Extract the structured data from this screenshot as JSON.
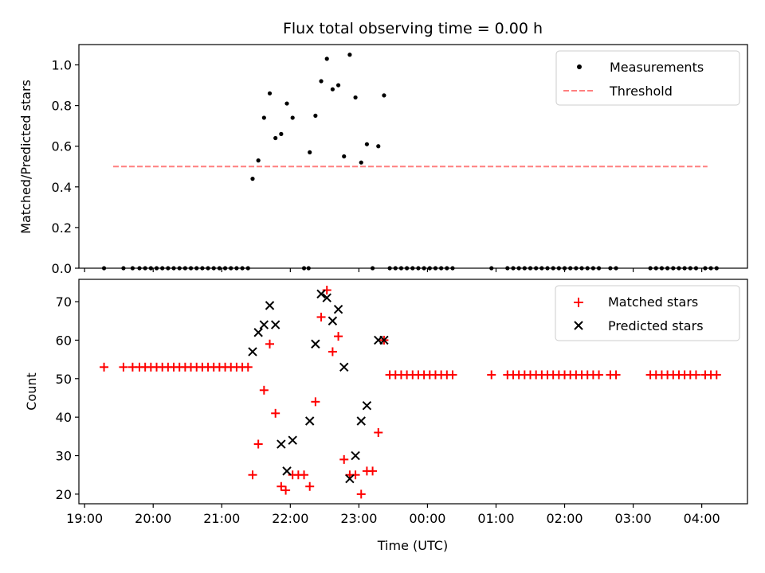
{
  "title": "Flux total observing time = 0.00 h",
  "colors": {
    "measurements": "#000000",
    "threshold": "#ff7f7f",
    "matched": "#ff0000",
    "predicted": "#000000"
  },
  "chart_data": [
    {
      "type": "scatter",
      "ylabel": "Matched/Predicted stars",
      "ylim": [
        0,
        1.1
      ],
      "yticks": [
        0.0,
        0.2,
        0.4,
        0.6,
        0.8,
        1.0
      ],
      "ytick_labels": [
        "0.0",
        "0.2",
        "0.4",
        "0.6",
        "0.8",
        "1.0"
      ],
      "xlim": [
        "18:55",
        "04:40"
      ],
      "grid": false,
      "legend": {
        "placement": "top-right",
        "entries": [
          "Measurements",
          "Threshold"
        ]
      },
      "threshold": {
        "name": "Threshold",
        "value": 0.5,
        "x_start": "19:25",
        "x_end": "04:05"
      },
      "series": [
        {
          "name": "Measurements",
          "points": [
            [
              "19:17",
              0
            ],
            [
              "19:34",
              0
            ],
            [
              "19:42",
              0
            ],
            [
              "19:48",
              0
            ],
            [
              "19:53",
              0
            ],
            [
              "19:58",
              0
            ],
            [
              "20:03",
              0
            ],
            [
              "20:08",
              0
            ],
            [
              "20:13",
              0
            ],
            [
              "20:18",
              0
            ],
            [
              "20:23",
              0
            ],
            [
              "20:28",
              0
            ],
            [
              "20:33",
              0
            ],
            [
              "20:38",
              0
            ],
            [
              "20:43",
              0
            ],
            [
              "20:48",
              0
            ],
            [
              "20:53",
              0
            ],
            [
              "20:58",
              0
            ],
            [
              "21:03",
              0
            ],
            [
              "21:08",
              0
            ],
            [
              "21:13",
              0
            ],
            [
              "21:18",
              0
            ],
            [
              "21:23",
              0
            ],
            [
              "21:27",
              0.44
            ],
            [
              "21:32",
              0.53
            ],
            [
              "21:37",
              0.74
            ],
            [
              "21:42",
              0.86
            ],
            [
              "21:47",
              0.64
            ],
            [
              "21:52",
              0.66
            ],
            [
              "21:57",
              0.81
            ],
            [
              "22:02",
              0.74
            ],
            [
              "22:12",
              0.0
            ],
            [
              "22:16",
              0.0
            ],
            [
              "22:17",
              0.57
            ],
            [
              "22:22",
              0.75
            ],
            [
              "22:27",
              0.92
            ],
            [
              "22:32",
              1.03
            ],
            [
              "22:37",
              0.88
            ],
            [
              "22:42",
              0.9
            ],
            [
              "22:47",
              0.55
            ],
            [
              "22:52",
              1.05
            ],
            [
              "22:57",
              0.84
            ],
            [
              "23:02",
              0.52
            ],
            [
              "23:07",
              0.61
            ],
            [
              "23:12",
              0.0
            ],
            [
              "23:17",
              0.6
            ],
            [
              "23:22",
              0.85
            ],
            [
              "23:27",
              0
            ],
            [
              "23:32",
              0
            ],
            [
              "23:37",
              0
            ],
            [
              "23:42",
              0
            ],
            [
              "23:47",
              0
            ],
            [
              "23:52",
              0
            ],
            [
              "23:57",
              0
            ],
            [
              "00:02",
              0
            ],
            [
              "00:07",
              0
            ],
            [
              "00:12",
              0
            ],
            [
              "00:17",
              0
            ],
            [
              "00:22",
              0
            ],
            [
              "00:56",
              0
            ],
            [
              "01:10",
              0
            ],
            [
              "01:15",
              0
            ],
            [
              "01:20",
              0
            ],
            [
              "01:25",
              0
            ],
            [
              "01:30",
              0
            ],
            [
              "01:35",
              0
            ],
            [
              "01:40",
              0
            ],
            [
              "01:45",
              0
            ],
            [
              "01:50",
              0
            ],
            [
              "01:55",
              0
            ],
            [
              "02:00",
              0
            ],
            [
              "02:05",
              0
            ],
            [
              "02:10",
              0
            ],
            [
              "02:15",
              0
            ],
            [
              "02:20",
              0
            ],
            [
              "02:25",
              0
            ],
            [
              "02:30",
              0
            ],
            [
              "02:40",
              0
            ],
            [
              "02:45",
              0
            ],
            [
              "03:15",
              0
            ],
            [
              "03:20",
              0
            ],
            [
              "03:25",
              0
            ],
            [
              "03:30",
              0
            ],
            [
              "03:35",
              0
            ],
            [
              "03:40",
              0
            ],
            [
              "03:45",
              0
            ],
            [
              "03:50",
              0
            ],
            [
              "03:55",
              0
            ],
            [
              "04:03",
              0
            ],
            [
              "04:08",
              0
            ],
            [
              "04:13",
              0
            ]
          ]
        }
      ]
    },
    {
      "type": "scatter",
      "xlabel": "Time (UTC)",
      "ylabel": "Count",
      "ylim": [
        17.5,
        75.8
      ],
      "yticks": [
        20,
        30,
        40,
        50,
        60,
        70
      ],
      "ytick_labels": [
        "20",
        "30",
        "40",
        "50",
        "60",
        "70"
      ],
      "xlim": [
        "18:55",
        "04:40"
      ],
      "xticks": [
        "19:00",
        "20:00",
        "21:00",
        "22:00",
        "23:00",
        "00:00",
        "01:00",
        "02:00",
        "03:00",
        "04:00"
      ],
      "xtick_labels": [
        "19:00",
        "20:00",
        "21:00",
        "22:00",
        "23:00",
        "00:00",
        "01:00",
        "02:00",
        "03:00",
        "04:00"
      ],
      "grid": false,
      "legend": {
        "placement": "top-right",
        "entries": [
          "Matched stars",
          "Predicted stars"
        ]
      },
      "series": [
        {
          "name": "Matched stars",
          "points": [
            [
              "19:17",
              53
            ],
            [
              "19:34",
              53
            ],
            [
              "19:42",
              53
            ],
            [
              "19:48",
              53
            ],
            [
              "19:53",
              53
            ],
            [
              "19:58",
              53
            ],
            [
              "20:03",
              53
            ],
            [
              "20:08",
              53
            ],
            [
              "20:13",
              53
            ],
            [
              "20:18",
              53
            ],
            [
              "20:23",
              53
            ],
            [
              "20:28",
              53
            ],
            [
              "20:33",
              53
            ],
            [
              "20:38",
              53
            ],
            [
              "20:43",
              53
            ],
            [
              "20:48",
              53
            ],
            [
              "20:53",
              53
            ],
            [
              "20:58",
              53
            ],
            [
              "21:03",
              53
            ],
            [
              "21:08",
              53
            ],
            [
              "21:13",
              53
            ],
            [
              "21:18",
              53
            ],
            [
              "21:23",
              53
            ],
            [
              "21:27",
              25
            ],
            [
              "21:32",
              33
            ],
            [
              "21:37",
              47
            ],
            [
              "21:42",
              59
            ],
            [
              "21:47",
              41
            ],
            [
              "21:52",
              22
            ],
            [
              "21:56",
              21
            ],
            [
              "22:02",
              25
            ],
            [
              "22:07",
              25
            ],
            [
              "22:12",
              25
            ],
            [
              "22:17",
              22
            ],
            [
              "22:22",
              44
            ],
            [
              "22:27",
              66
            ],
            [
              "22:32",
              73
            ],
            [
              "22:37",
              57
            ],
            [
              "22:42",
              61
            ],
            [
              "22:47",
              29
            ],
            [
              "22:52",
              25
            ],
            [
              "22:57",
              25
            ],
            [
              "23:02",
              20
            ],
            [
              "23:07",
              26
            ],
            [
              "23:12",
              26
            ],
            [
              "23:17",
              36
            ],
            [
              "23:22",
              60
            ],
            [
              "23:27",
              51
            ],
            [
              "23:32",
              51
            ],
            [
              "23:37",
              51
            ],
            [
              "23:42",
              51
            ],
            [
              "23:47",
              51
            ],
            [
              "23:52",
              51
            ],
            [
              "23:57",
              51
            ],
            [
              "00:02",
              51
            ],
            [
              "00:07",
              51
            ],
            [
              "00:12",
              51
            ],
            [
              "00:17",
              51
            ],
            [
              "00:22",
              51
            ],
            [
              "00:56",
              51
            ],
            [
              "01:10",
              51
            ],
            [
              "01:15",
              51
            ],
            [
              "01:20",
              51
            ],
            [
              "01:25",
              51
            ],
            [
              "01:30",
              51
            ],
            [
              "01:35",
              51
            ],
            [
              "01:40",
              51
            ],
            [
              "01:45",
              51
            ],
            [
              "01:50",
              51
            ],
            [
              "01:55",
              51
            ],
            [
              "02:00",
              51
            ],
            [
              "02:05",
              51
            ],
            [
              "02:10",
              51
            ],
            [
              "02:15",
              51
            ],
            [
              "02:20",
              51
            ],
            [
              "02:25",
              51
            ],
            [
              "02:30",
              51
            ],
            [
              "02:40",
              51
            ],
            [
              "02:45",
              51
            ],
            [
              "03:15",
              51
            ],
            [
              "03:20",
              51
            ],
            [
              "03:25",
              51
            ],
            [
              "03:30",
              51
            ],
            [
              "03:35",
              51
            ],
            [
              "03:40",
              51
            ],
            [
              "03:45",
              51
            ],
            [
              "03:50",
              51
            ],
            [
              "03:55",
              51
            ],
            [
              "04:03",
              51
            ],
            [
              "04:08",
              51
            ],
            [
              "04:13",
              51
            ]
          ]
        },
        {
          "name": "Predicted stars",
          "points": [
            [
              "21:27",
              57
            ],
            [
              "21:32",
              62
            ],
            [
              "21:37",
              64
            ],
            [
              "21:42",
              69
            ],
            [
              "21:47",
              64
            ],
            [
              "21:52",
              33
            ],
            [
              "21:57",
              26
            ],
            [
              "22:02",
              34
            ],
            [
              "22:17",
              39
            ],
            [
              "22:22",
              59
            ],
            [
              "22:27",
              72
            ],
            [
              "22:32",
              71
            ],
            [
              "22:37",
              65
            ],
            [
              "22:42",
              68
            ],
            [
              "22:47",
              53
            ],
            [
              "22:52",
              24
            ],
            [
              "22:57",
              30
            ],
            [
              "23:02",
              39
            ],
            [
              "23:07",
              43
            ],
            [
              "23:17",
              60
            ],
            [
              "23:22",
              60
            ]
          ]
        }
      ]
    }
  ]
}
